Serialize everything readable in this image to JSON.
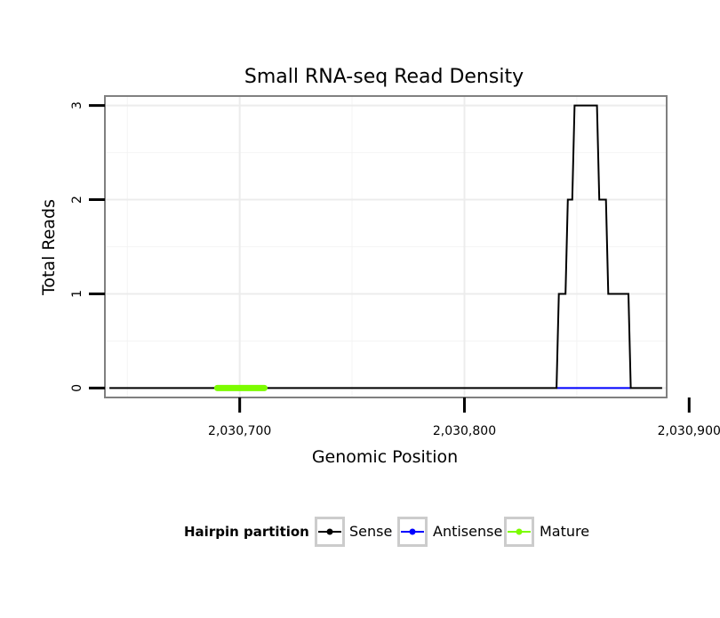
{
  "chart_data": {
    "type": "line",
    "title": "Small RNA-seq Read Density",
    "xlabel": "Genomic Position",
    "ylabel": "Total Reads",
    "xlim": [
      2030640,
      2030890
    ],
    "ylim": [
      -0.1,
      3.1
    ],
    "x_ticks": [
      2030700,
      2030800,
      2030900
    ],
    "x_tick_labels": [
      "2,030,700",
      "2,030,800",
      "2,030,900"
    ],
    "y_ticks": [
      0,
      1,
      2,
      3
    ],
    "y_tick_labels": [
      "0",
      "1",
      "2",
      "3"
    ],
    "grid": true,
    "series": [
      {
        "name": "Sense",
        "color": "#000000",
        "points": [
          [
            2030642,
            0
          ],
          [
            2030841,
            0
          ],
          [
            2030842,
            1
          ],
          [
            2030845,
            1
          ],
          [
            2030846,
            2
          ],
          [
            2030848,
            2
          ],
          [
            2030849,
            3
          ],
          [
            2030859,
            3
          ],
          [
            2030860,
            2
          ],
          [
            2030863,
            2
          ],
          [
            2030864,
            1
          ],
          [
            2030873,
            1
          ],
          [
            2030874,
            0
          ],
          [
            2030888,
            0
          ]
        ]
      },
      {
        "name": "Antisense",
        "color": "#0000ff",
        "points": [
          [
            2030841,
            0
          ],
          [
            2030874,
            0
          ]
        ]
      },
      {
        "name": "Mature",
        "color": "#7cfc00",
        "points": [
          [
            2030690,
            0
          ],
          [
            2030711,
            0
          ]
        ]
      }
    ],
    "legend": {
      "title": "Hairpin partition",
      "position": "bottom",
      "items": [
        {
          "label": "Sense",
          "color": "#000000"
        },
        {
          "label": "Antisense",
          "color": "#0000ff"
        },
        {
          "label": "Mature",
          "color": "#7cfc00"
        }
      ]
    }
  }
}
